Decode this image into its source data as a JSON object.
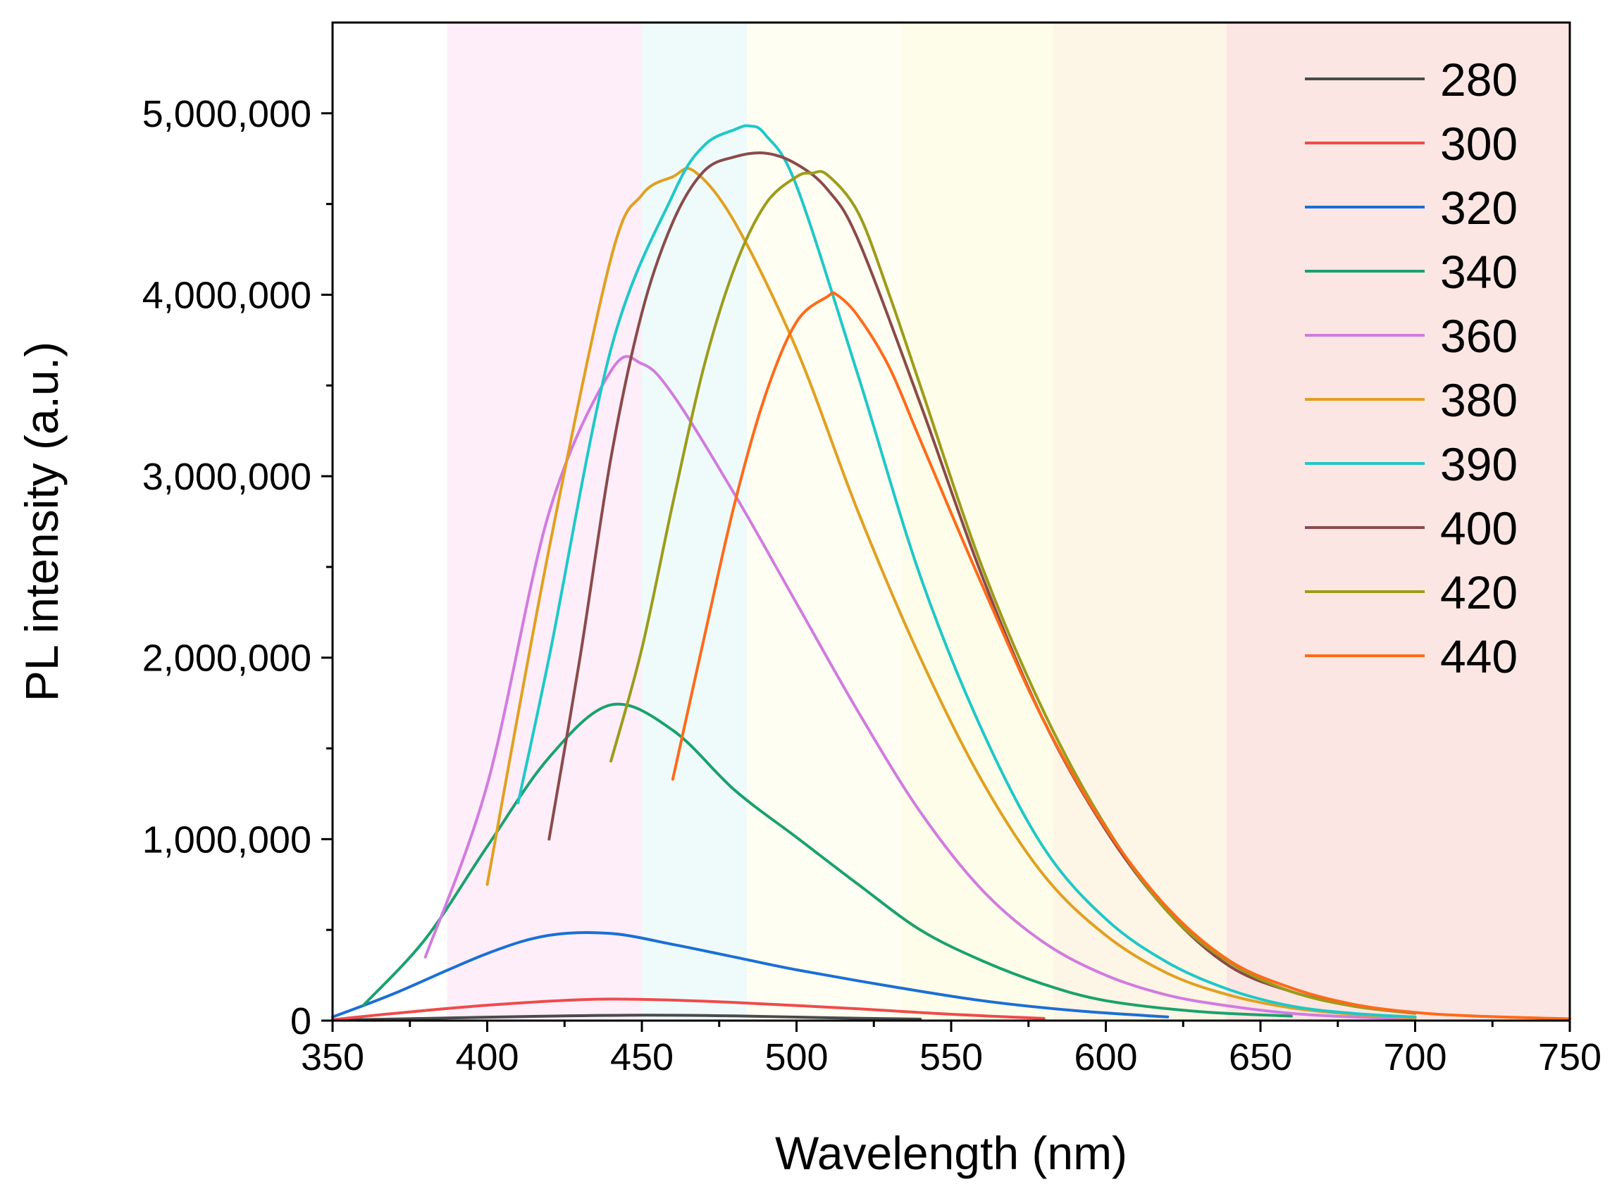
{
  "chart_data": {
    "type": "line",
    "title": "",
    "xlabel": "Wavelength (nm)",
    "ylabel": "PL intensity (a.u.)",
    "xlim": [
      350,
      750
    ],
    "ylim": [
      0,
      5500000
    ],
    "x_ticks": [
      350,
      400,
      450,
      500,
      550,
      600,
      650,
      700,
      750
    ],
    "x_tick_labels": [
      "350",
      "400",
      "450",
      "500",
      "550",
      "600",
      "650",
      "700",
      "750"
    ],
    "y_ticks": [
      0,
      1000000,
      2000000,
      3000000,
      4000000,
      5000000
    ],
    "y_tick_labels": [
      "0",
      "1,000,000",
      "2,000,000",
      "3,000,000",
      "4,000,000",
      "5,000,000"
    ],
    "grid": false,
    "legend_position": "top-right",
    "background_bands": [
      {
        "from": 387,
        "to": 450,
        "color": "#fdeefa"
      },
      {
        "from": 450,
        "to": 484,
        "color": "#effbfb"
      },
      {
        "from": 484,
        "to": 534,
        "color": "#fefef2"
      },
      {
        "from": 534,
        "to": 583,
        "color": "#fefde9"
      },
      {
        "from": 583,
        "to": 639,
        "color": "#fdf5e5"
      },
      {
        "from": 639,
        "to": 750,
        "color": "#fce6e3"
      }
    ],
    "series": [
      {
        "name": "280",
        "color": "#4a4a4a",
        "x": [
          350,
          380,
          420,
          450,
          480,
          510,
          540
        ],
        "values": [
          3000,
          12000,
          25000,
          30000,
          26000,
          16000,
          8000
        ]
      },
      {
        "name": "300",
        "color": "#ef4b4b",
        "x": [
          350,
          370,
          400,
          430,
          450,
          480,
          520,
          550,
          580
        ],
        "values": [
          5000,
          40000,
          85000,
          115000,
          117000,
          100000,
          65000,
          35000,
          12000
        ]
      },
      {
        "name": "320",
        "color": "#1a6fd4",
        "x": [
          350,
          370,
          400,
          420,
          440,
          460,
          480,
          500,
          530,
          560,
          590,
          620
        ],
        "values": [
          20000,
          150000,
          370000,
          470000,
          480000,
          420000,
          350000,
          280000,
          190000,
          110000,
          55000,
          20000
        ]
      },
      {
        "name": "340",
        "color": "#1aa16d",
        "x": [
          360,
          380,
          400,
          420,
          440,
          460,
          480,
          500,
          520,
          540,
          560,
          580,
          600,
          630,
          660
        ],
        "values": [
          85000,
          450000,
          960000,
          1450000,
          1740000,
          1600000,
          1270000,
          1010000,
          750000,
          500000,
          330000,
          200000,
          110000,
          50000,
          25000
        ]
      },
      {
        "name": "360",
        "color": "#d17be0",
        "x": [
          380,
          400,
          420,
          440,
          450,
          460,
          480,
          500,
          520,
          540,
          560,
          580,
          600,
          620,
          640,
          660,
          680,
          700
        ],
        "values": [
          350000,
          1300000,
          2800000,
          3580000,
          3620000,
          3450000,
          2900000,
          2300000,
          1700000,
          1150000,
          720000,
          430000,
          250000,
          140000,
          80000,
          40000,
          20000,
          10000
        ]
      },
      {
        "name": "380",
        "color": "#e0a020",
        "x": [
          400,
          420,
          440,
          450,
          460,
          467,
          480,
          500,
          520,
          540,
          560,
          580,
          600,
          620,
          640,
          660,
          680,
          700
        ],
        "values": [
          750000,
          2600000,
          4200000,
          4550000,
          4650000,
          4680000,
          4400000,
          3700000,
          2800000,
          2000000,
          1320000,
          800000,
          470000,
          260000,
          140000,
          70000,
          35000,
          15000
        ]
      },
      {
        "name": "390",
        "color": "#1ec8c8",
        "x": [
          410,
          420,
          440,
          460,
          470,
          480,
          485,
          490,
          500,
          520,
          540,
          560,
          580,
          600,
          620,
          640,
          660,
          680,
          700
        ],
        "values": [
          1200000,
          2000000,
          3700000,
          4550000,
          4820000,
          4910000,
          4930000,
          4880000,
          4600000,
          3550000,
          2450000,
          1600000,
          950000,
          560000,
          320000,
          170000,
          80000,
          40000,
          20000
        ]
      },
      {
        "name": "400",
        "color": "#8b4a4a",
        "x": [
          420,
          430,
          440,
          450,
          460,
          470,
          480,
          490,
          500,
          510,
          520,
          540,
          560,
          580,
          600,
          620,
          640,
          660,
          680,
          700
        ],
        "values": [
          1000000,
          2000000,
          3100000,
          3900000,
          4400000,
          4680000,
          4760000,
          4780000,
          4720000,
          4580000,
          4300000,
          3400000,
          2450000,
          1650000,
          1050000,
          600000,
          300000,
          160000,
          80000,
          40000
        ]
      },
      {
        "name": "420",
        "color": "#9c9c1a",
        "x": [
          440,
          450,
          460,
          470,
          480,
          490,
          500,
          505,
          510,
          520,
          530,
          540,
          560,
          580,
          600,
          620,
          640,
          660,
          680,
          700
        ],
        "values": [
          1430000,
          2050000,
          2850000,
          3600000,
          4150000,
          4500000,
          4650000,
          4670000,
          4660000,
          4450000,
          4000000,
          3500000,
          2500000,
          1700000,
          1070000,
          600000,
          320000,
          160000,
          80000,
          40000
        ]
      },
      {
        "name": "440",
        "color": "#ff6a1a",
        "x": [
          460,
          470,
          480,
          490,
          500,
          510,
          513,
          520,
          530,
          540,
          560,
          580,
          600,
          620,
          640,
          660,
          680,
          700,
          720,
          750
        ],
        "values": [
          1330000,
          2100000,
          2850000,
          3450000,
          3850000,
          3990000,
          4000000,
          3880000,
          3600000,
          3200000,
          2400000,
          1650000,
          1060000,
          620000,
          330000,
          180000,
          90000,
          45000,
          25000,
          10000
        ]
      }
    ]
  }
}
